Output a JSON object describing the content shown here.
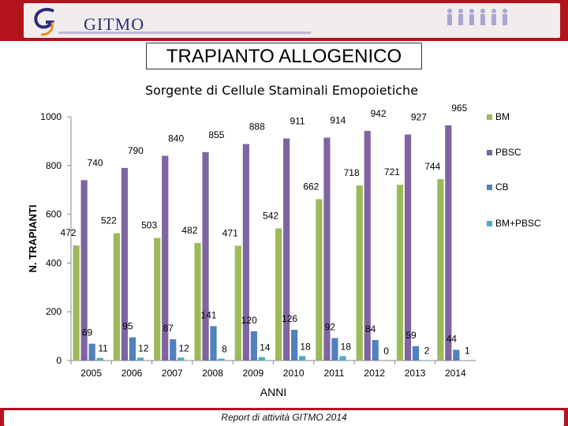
{
  "header": {
    "logo_text": "GITMO"
  },
  "slide": {
    "title": "TRAPIANTO ALLOGENICO"
  },
  "footer": {
    "text": "Report di attività GITMO 2014"
  },
  "chart_data": {
    "type": "bar",
    "title": "Sorgente di Cellule Staminali Emopoietiche",
    "xlabel": "ANNI",
    "ylabel": "N. TRAPIANTI",
    "ylim": [
      0,
      1000
    ],
    "yticks": [
      0,
      200,
      400,
      600,
      800,
      1000
    ],
    "categories": [
      "2005",
      "2006",
      "2007",
      "2008",
      "2009",
      "2010",
      "2011",
      "2012",
      "2013",
      "2014"
    ],
    "series": [
      {
        "name": "BM",
        "color": "#9bbb59",
        "values": [
          472,
          522,
          503,
          482,
          471,
          542,
          662,
          718,
          721,
          744
        ]
      },
      {
        "name": "PBSC",
        "color": "#8064a2",
        "values": [
          740,
          790,
          840,
          855,
          888,
          911,
          914,
          942,
          927,
          965
        ]
      },
      {
        "name": "CB",
        "color": "#4f81bd",
        "values": [
          69,
          95,
          87,
          141,
          120,
          126,
          92,
          84,
          59,
          44
        ]
      },
      {
        "name": "BM+PBSC",
        "color": "#4bacc6",
        "values": [
          11,
          12,
          12,
          8,
          14,
          18,
          18,
          0,
          2,
          1
        ]
      }
    ],
    "legend": "right",
    "grid": false
  }
}
